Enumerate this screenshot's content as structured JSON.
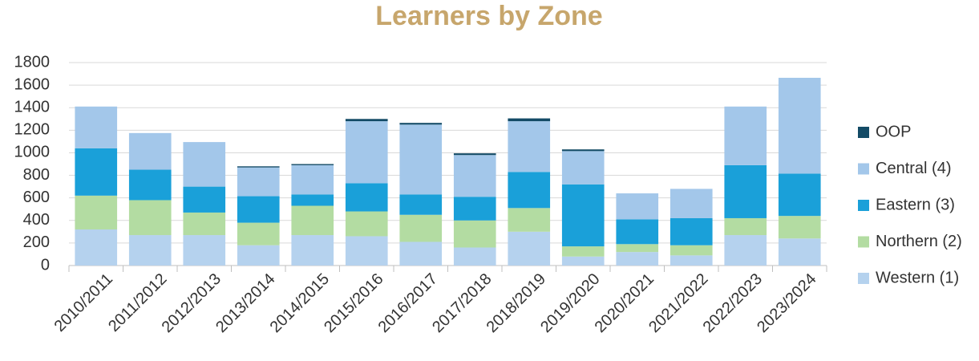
{
  "chart_data": {
    "type": "stacked_bar",
    "title": "Learners by Zone",
    "categories": [
      "2010/2011",
      "2011/2012",
      "2012/2013",
      "2013/2014",
      "2014/2015",
      "2015/2016",
      "2016/2017",
      "2017/2018",
      "2018/2019",
      "2019/2020",
      "2020/2021",
      "2021/2022",
      "2022/2023",
      "2023/2024"
    ],
    "series": [
      {
        "name": "Western (1)",
        "color": "#b5d2ee",
        "values": [
          320,
          270,
          270,
          180,
          270,
          260,
          210,
          160,
          300,
          80,
          120,
          90,
          270,
          240
        ]
      },
      {
        "name": "Northern (2)",
        "color": "#b3dca2",
        "values": [
          300,
          310,
          200,
          200,
          260,
          220,
          240,
          240,
          210,
          90,
          70,
          90,
          150,
          200
        ]
      },
      {
        "name": "Eastern (3)",
        "color": "#1aa0d9",
        "values": [
          420,
          270,
          230,
          235,
          100,
          250,
          180,
          210,
          320,
          550,
          220,
          240,
          470,
          375
        ]
      },
      {
        "name": "Central (4)",
        "color": "#a3c7ea",
        "values": [
          370,
          325,
          395,
          255,
          260,
          550,
          620,
          370,
          450,
          295,
          230,
          260,
          520,
          850
        ]
      },
      {
        "name": "OOP",
        "color": "#134b66",
        "values": [
          0,
          0,
          0,
          10,
          10,
          20,
          15,
          15,
          25,
          15,
          0,
          0,
          0,
          0
        ]
      }
    ],
    "ylim": [
      0,
      1800
    ],
    "yticks": [
      0,
      200,
      400,
      600,
      800,
      1000,
      1200,
      1400,
      1600,
      1800
    ],
    "grid": true,
    "legend": "right"
  }
}
